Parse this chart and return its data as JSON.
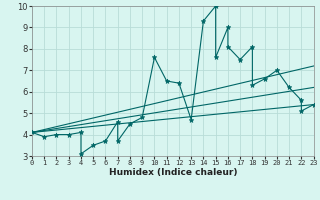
{
  "xlabel": "Humidex (Indice chaleur)",
  "x_values": [
    0,
    1,
    2,
    3,
    4,
    4,
    5,
    6,
    7,
    7,
    8,
    9,
    10,
    11,
    12,
    13,
    14,
    15,
    15,
    16,
    16,
    17,
    18,
    18,
    19,
    20,
    21,
    22,
    22,
    23
  ],
  "y_values": [
    4.1,
    3.9,
    4.0,
    4.0,
    4.1,
    3.1,
    3.5,
    3.7,
    4.6,
    3.7,
    4.5,
    4.8,
    7.6,
    6.5,
    6.4,
    4.7,
    9.3,
    10.0,
    7.6,
    9.0,
    8.1,
    7.5,
    8.1,
    6.3,
    6.6,
    7.0,
    6.2,
    5.6,
    5.1,
    5.4
  ],
  "line_color": "#006666",
  "marker_color": "#006666",
  "bg_color": "#d8f5f0",
  "grid_color": "#b8ddd8",
  "ylim": [
    3,
    10
  ],
  "xlim": [
    0,
    23
  ],
  "yticks": [
    3,
    4,
    5,
    6,
    7,
    8,
    9,
    10
  ],
  "xticks": [
    0,
    1,
    2,
    3,
    4,
    5,
    6,
    7,
    8,
    9,
    10,
    11,
    12,
    13,
    14,
    15,
    16,
    17,
    18,
    19,
    20,
    21,
    22,
    23
  ],
  "trend_lines": [
    {
      "x0": 0,
      "y0": 4.1,
      "x1": 23,
      "y1": 7.2
    },
    {
      "x0": 0,
      "y0": 4.1,
      "x1": 23,
      "y1": 6.2
    },
    {
      "x0": 0,
      "y0": 4.1,
      "x1": 23,
      "y1": 5.4
    }
  ]
}
